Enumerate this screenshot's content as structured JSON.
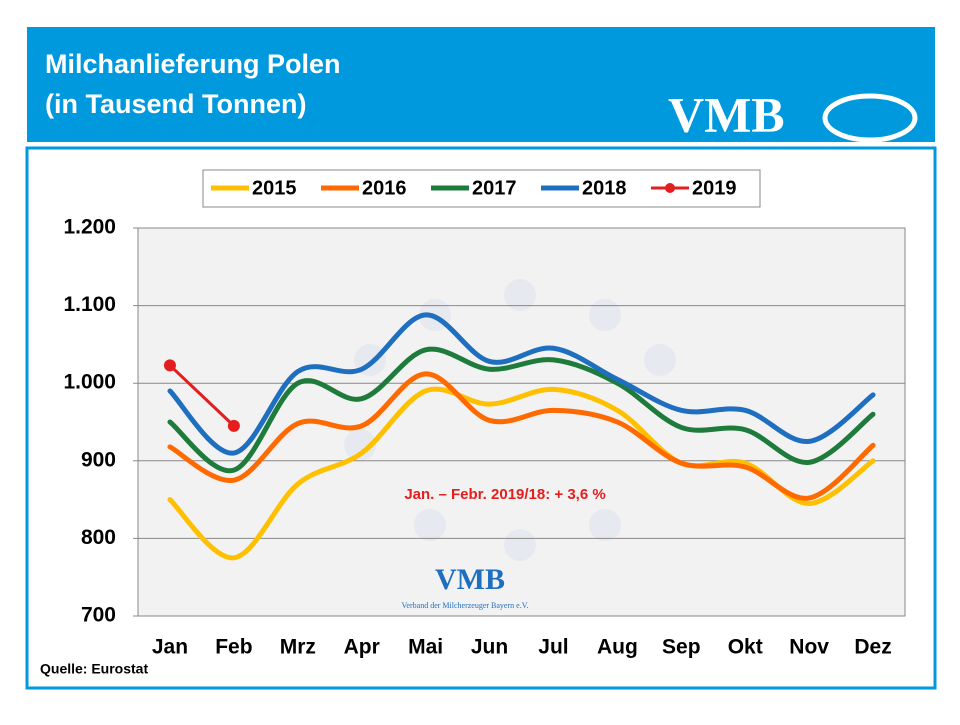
{
  "chart_data": {
    "type": "line",
    "title": "Milchanlieferung Polen",
    "subtitle": "(in Tausend Tonnen)",
    "logo": "VMB",
    "watermark_logo": "VMB",
    "watermark_subtitle": "Verband der Milcherzeuger Bayern e.V.",
    "annotation": "Jan. – Febr. 2019/18:  + 3,6 %",
    "source": "Quelle: Eurostat",
    "categories": [
      "Jan",
      "Feb",
      "Mrz",
      "Apr",
      "Mai",
      "Jun",
      "Jul",
      "Aug",
      "Sep",
      "Okt",
      "Nov",
      "Dez"
    ],
    "series": [
      {
        "name": "2015",
        "color": "#ffc000",
        "values": [
          850,
          775,
          870,
          910,
          990,
          973,
          992,
          965,
          897,
          897,
          845,
          900
        ]
      },
      {
        "name": "2016",
        "color": "#ff6a00",
        "values": [
          918,
          875,
          948,
          945,
          1012,
          952,
          965,
          950,
          897,
          892,
          852,
          920
        ]
      },
      {
        "name": "2017",
        "color": "#1e7b3c",
        "values": [
          950,
          888,
          1000,
          980,
          1043,
          1018,
          1030,
          1000,
          943,
          940,
          898,
          960
        ]
      },
      {
        "name": "2018",
        "color": "#1f6fc0",
        "values": [
          990,
          910,
          1015,
          1018,
          1088,
          1028,
          1045,
          1005,
          965,
          965,
          925,
          985
        ]
      },
      {
        "name": "2019",
        "color": "#e41e1e",
        "markers": true,
        "values": [
          1023,
          945,
          null,
          null,
          null,
          null,
          null,
          null,
          null,
          null,
          null,
          null
        ]
      }
    ],
    "ylim": [
      700,
      1200
    ],
    "yticks": [
      700,
      800,
      900,
      {
        "value": 1000,
        "label": "1.000"
      },
      {
        "value": 1100,
        "label": "1.100"
      },
      {
        "value": 1200,
        "label": "1.200"
      }
    ],
    "grid": true
  }
}
